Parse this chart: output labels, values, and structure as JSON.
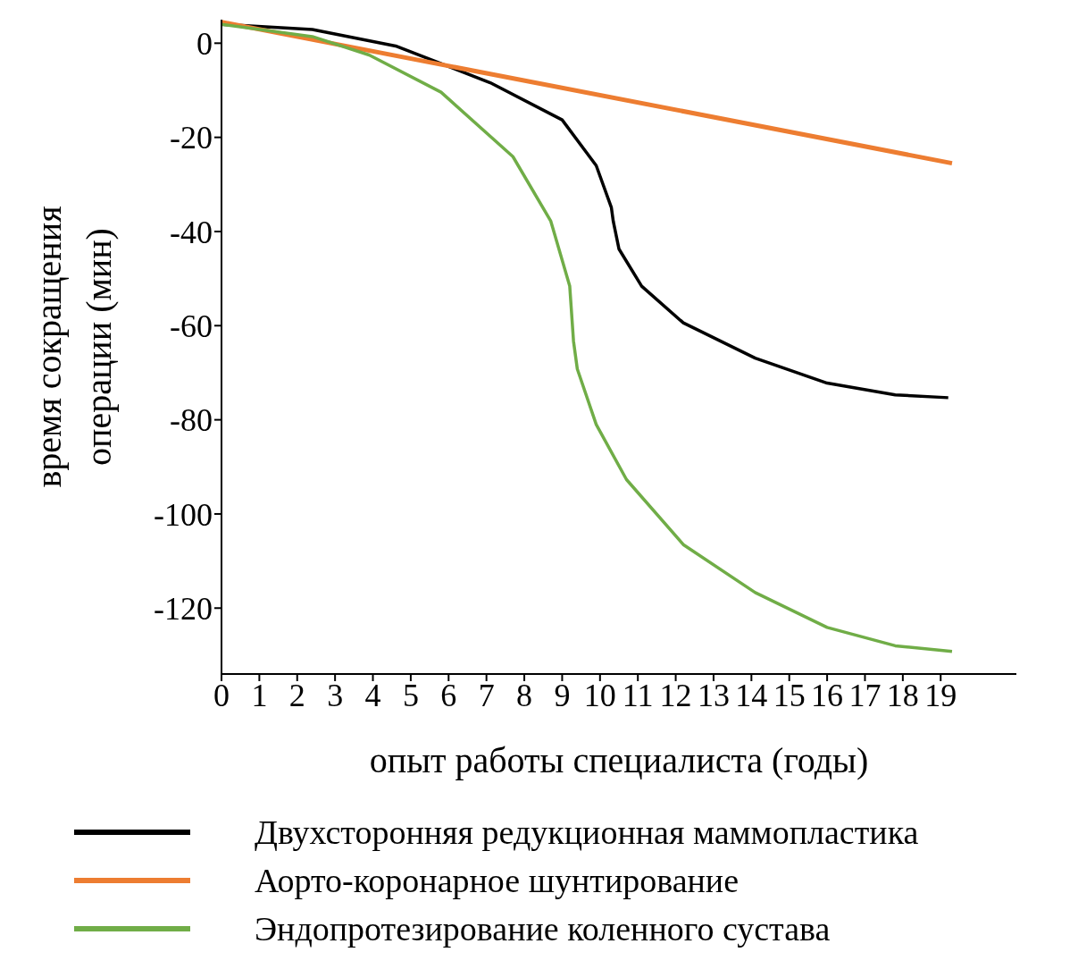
{
  "chart_data": {
    "type": "line",
    "xlabel": "опыт работы специалиста (годы)",
    "ylabel": "время сокращения\nоперации (мин)",
    "xlim": [
      0,
      21
    ],
    "xticks": [
      0,
      1,
      2,
      3,
      4,
      5,
      6,
      7,
      8,
      9,
      10,
      11,
      12,
      13,
      14,
      15,
      16,
      17,
      18,
      19
    ],
    "ylim": [
      -134,
      5
    ],
    "yticks": [
      0,
      -20,
      -40,
      -60,
      -80,
      -100,
      -120
    ],
    "grid": false,
    "legend": "bottom",
    "marker": "none",
    "line_style": "solid",
    "series": [
      {
        "name": "Двухсторонняя редукционная маммопластика",
        "color": "#000000",
        "x": [
          0,
          2.4,
          4.6,
          7.1,
          9,
          9.9,
          10.3,
          10.35,
          10.5,
          11.1,
          12.2,
          14.1,
          16,
          17.8,
          19.2
        ],
        "values": [
          4,
          2.9,
          -0.6,
          -8.4,
          -16.3,
          -26,
          -34.9,
          -37.8,
          -43.7,
          -51.6,
          -59.4,
          -66.9,
          -72.2,
          -74.7,
          -75.3
        ]
      },
      {
        "name": "Аорто-коронарное шунтирование",
        "color": "#ed7d31",
        "x": [
          0,
          19.3
        ],
        "values": [
          4.5,
          -25.5
        ]
      },
      {
        "name": "Эндопротезирование коленного сустава",
        "color": "#70ad47",
        "x": [
          0,
          2.4,
          3.9,
          5.8,
          7.7,
          8.7,
          9.2,
          9.3,
          9.4,
          9.9,
          10.7,
          12.2,
          14.1,
          16,
          17.8,
          19.3
        ],
        "values": [
          4,
          1.4,
          -2.5,
          -10.4,
          -24.1,
          -37.8,
          -51.6,
          -63.3,
          -69.2,
          -81,
          -92.7,
          -106.5,
          -116.7,
          -124.1,
          -128,
          -129.2
        ]
      }
    ]
  }
}
